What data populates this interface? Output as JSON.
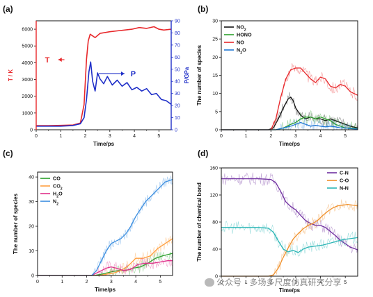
{
  "watermark": "公众号 · 多场多尺度仿真研究分享",
  "chart_data": [
    {
      "panel": "(a)",
      "type": "line",
      "xlabel": "Time/ps",
      "ylabel": "T / K",
      "y2label": "P/GPa",
      "xlim": [
        0,
        5.5
      ],
      "xticks": [
        0,
        1,
        2,
        3,
        4,
        5
      ],
      "ylim": [
        0,
        6500
      ],
      "yticks": [
        0,
        1000,
        2000,
        3000,
        4000,
        5000,
        6000
      ],
      "y2lim": [
        0,
        90
      ],
      "y2ticks": [
        0,
        10,
        20,
        30,
        40,
        50,
        60,
        70,
        80,
        90
      ],
      "annotations": [
        {
          "text": "T",
          "color": "#e8282b"
        },
        {
          "text": "P",
          "color": "#1f2fc8"
        }
      ],
      "series": [
        {
          "name": "T",
          "axis": "left",
          "color": "#e8282b",
          "x": [
            0,
            0.5,
            1.0,
            1.5,
            1.8,
            1.95,
            2.05,
            2.12,
            2.2,
            2.4,
            2.6,
            2.8,
            3.0,
            3.3,
            3.6,
            3.9,
            4.2,
            4.5,
            4.8,
            5.0,
            5.2,
            5.5
          ],
          "y": [
            250,
            250,
            260,
            280,
            400,
            1500,
            4200,
            5300,
            5700,
            5500,
            5750,
            5800,
            5850,
            5900,
            5950,
            6000,
            6100,
            6050,
            6150,
            6000,
            5950,
            6000
          ]
        },
        {
          "name": "P",
          "axis": "right",
          "color": "#1f2fc8",
          "x": [
            0,
            1.0,
            1.5,
            1.8,
            1.95,
            2.05,
            2.15,
            2.22,
            2.3,
            2.4,
            2.5,
            2.6,
            2.75,
            2.9,
            3.1,
            3.3,
            3.5,
            3.7,
            3.9,
            4.1,
            4.3,
            4.5,
            4.7,
            4.9,
            5.1,
            5.3,
            5.5
          ],
          "y": [
            3,
            3,
            3.5,
            5,
            10,
            25,
            48,
            56,
            40,
            32,
            47,
            42,
            38,
            44,
            37,
            41,
            36,
            39,
            33,
            35,
            32,
            34,
            29,
            30,
            25,
            24,
            21
          ]
        }
      ]
    },
    {
      "panel": "(b)",
      "type": "line",
      "xlabel": "Time/ps",
      "ylabel": "The number of species",
      "xlim": [
        0,
        5.5
      ],
      "xticks": [
        0,
        1,
        2,
        3,
        4,
        5
      ],
      "ylim": [
        0,
        30
      ],
      "yticks": [
        0,
        5,
        10,
        15,
        20,
        25,
        30
      ],
      "legend": "top-left",
      "series": [
        {
          "name": "NO2",
          "color": "#111111",
          "x": [
            0,
            1.9,
            2.1,
            2.3,
            2.5,
            2.7,
            2.8,
            2.9,
            3.0,
            3.2,
            3.4,
            3.6,
            3.8,
            4.0,
            4.2,
            4.4,
            4.6,
            4.8,
            5.0,
            5.2,
            5.5
          ],
          "y": [
            0,
            0,
            0.5,
            3,
            6,
            8.5,
            9,
            8,
            6,
            4,
            3,
            3.5,
            3,
            3,
            2.5,
            3,
            2.5,
            2,
            1.5,
            1,
            0.5
          ]
        },
        {
          "name": "HONO",
          "color": "#2ca02c",
          "x": [
            0,
            2.2,
            2.5,
            2.8,
            3.0,
            3.2,
            3.4,
            3.6,
            3.8,
            4.0,
            4.2,
            4.4,
            4.6,
            4.8,
            5.0,
            5.2,
            5.5
          ],
          "y": [
            0,
            0,
            0.5,
            1.5,
            2,
            3,
            3.5,
            3.5,
            3,
            3.5,
            3,
            2.5,
            1.5,
            1,
            0.5,
            0.5,
            0.3
          ]
        },
        {
          "name": "NO",
          "color": "#e8282b",
          "x": [
            0,
            2.0,
            2.2,
            2.4,
            2.6,
            2.8,
            3.0,
            3.2,
            3.4,
            3.6,
            3.8,
            4.0,
            4.2,
            4.4,
            4.6,
            4.8,
            5.0,
            5.2,
            5.5
          ],
          "y": [
            0,
            0,
            3,
            9,
            14,
            16.5,
            17,
            17,
            15.5,
            14,
            13,
            14.5,
            14,
            12,
            11.5,
            12.5,
            12,
            10.5,
            9.5
          ]
        },
        {
          "name": "N2O",
          "color": "#1f77d4",
          "x": [
            0,
            2.2,
            2.5,
            2.8,
            3.0,
            3.2,
            3.4,
            3.6,
            3.8,
            4.0,
            4.2,
            4.4,
            4.6,
            4.8,
            5.0,
            5.2,
            5.5
          ],
          "y": [
            0,
            0,
            0.5,
            1,
            1.5,
            2,
            1.5,
            1,
            1.2,
            1,
            0.8,
            1,
            0.8,
            0.5,
            0.5,
            0.3,
            0.2
          ]
        }
      ]
    },
    {
      "panel": "(c)",
      "type": "line",
      "xlabel": "Time/ps",
      "ylabel": "The number of species",
      "xlim": [
        0,
        5.5
      ],
      "xticks": [
        0,
        1,
        2,
        3,
        4,
        5
      ],
      "ylim": [
        0,
        42
      ],
      "yticks": [
        0,
        10,
        20,
        30,
        40
      ],
      "legend": "top-left",
      "series": [
        {
          "name": "CO",
          "color": "#2ca02c",
          "x": [
            0,
            2.3,
            2.6,
            3.0,
            3.3,
            3.6,
            3.9,
            4.2,
            4.5,
            4.8,
            5.1,
            5.5
          ],
          "y": [
            0,
            0,
            0.5,
            1.5,
            2,
            2,
            3,
            3.5,
            5,
            7,
            8,
            9
          ]
        },
        {
          "name": "CO2",
          "color": "#ff9f3f",
          "x": [
            0,
            2.5,
            2.8,
            3.1,
            3.4,
            3.7,
            4.0,
            4.3,
            4.6,
            4.9,
            5.2,
            5.5
          ],
          "y": [
            0,
            0,
            0.5,
            1,
            2,
            4,
            7,
            7,
            8,
            11,
            13,
            15
          ]
        },
        {
          "name": "H2O",
          "color": "#e0308a",
          "x": [
            0,
            2.2,
            2.5,
            2.8,
            3.0,
            3.2,
            3.5,
            3.8,
            4.1,
            4.4,
            4.7,
            5.0,
            5.3,
            5.5
          ],
          "y": [
            0,
            0,
            1.5,
            3,
            3.5,
            3,
            2,
            2.5,
            4.5,
            5,
            5,
            5.5,
            6,
            6
          ]
        },
        {
          "name": "N2",
          "color": "#3b8ee0",
          "x": [
            0,
            2.2,
            2.4,
            2.6,
            2.8,
            3.0,
            3.2,
            3.4,
            3.6,
            3.8,
            4.0,
            4.2,
            4.4,
            4.6,
            4.8,
            5.0,
            5.2,
            5.5
          ],
          "y": [
            0,
            0,
            2,
            6,
            10,
            13,
            14,
            15,
            17,
            20,
            24,
            27,
            30,
            32,
            34,
            36,
            38,
            39
          ]
        }
      ]
    },
    {
      "panel": "(d)",
      "type": "line",
      "xlabel": "Time/ps",
      "ylabel": "The number of chemical bond",
      "xlim": [
        0,
        5.5
      ],
      "xticks": [
        0,
        1,
        2,
        3,
        4,
        5
      ],
      "ylim": [
        0,
        160
      ],
      "yticks": [
        0,
        40,
        80,
        120,
        160
      ],
      "legend": "top-right",
      "series": [
        {
          "name": "C-N",
          "color": "#7030a0",
          "x": [
            0,
            1.5,
            2.0,
            2.2,
            2.4,
            2.6,
            2.8,
            3.0,
            3.2,
            3.4,
            3.6,
            3.8,
            4.0,
            4.2,
            4.4,
            4.6,
            4.8,
            5.0,
            5.2,
            5.5
          ],
          "y": [
            144,
            144,
            143,
            138,
            125,
            110,
            103,
            98,
            90,
            82,
            78,
            75,
            75,
            72,
            66,
            60,
            53,
            48,
            43,
            39
          ]
        },
        {
          "name": "C-O",
          "color": "#f0902a",
          "x": [
            0,
            1.9,
            2.1,
            2.3,
            2.5,
            2.7,
            2.9,
            3.1,
            3.3,
            3.5,
            3.7,
            3.9,
            4.1,
            4.3,
            4.5,
            4.7,
            4.9,
            5.1,
            5.3,
            5.5
          ],
          "y": [
            0,
            0,
            2,
            12,
            28,
            42,
            55,
            63,
            70,
            75,
            78,
            83,
            90,
            96,
            101,
            104,
            105,
            106,
            105,
            104
          ]
        },
        {
          "name": "N-N",
          "color": "#2ab5b5",
          "x": [
            0,
            1.5,
            1.9,
            2.1,
            2.3,
            2.5,
            2.7,
            2.9,
            3.1,
            3.3,
            3.5,
            3.7,
            3.9,
            4.1,
            4.3,
            4.5,
            4.7,
            4.9,
            5.1,
            5.3,
            5.5
          ],
          "y": [
            72,
            72,
            71,
            65,
            52,
            40,
            36,
            38,
            35,
            40,
            43,
            44,
            45,
            46,
            48,
            50,
            52,
            54,
            55,
            56,
            57
          ]
        }
      ]
    }
  ]
}
